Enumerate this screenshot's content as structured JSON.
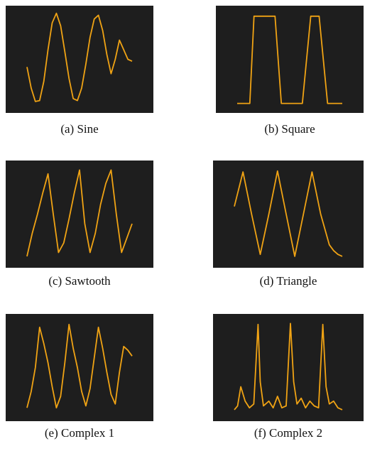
{
  "colors": {
    "screen": "#1e1e1e",
    "trace": "#f0a314",
    "page": "#ffffff"
  },
  "chart_data": [
    {
      "type": "line",
      "caption": "(a) Sine",
      "x": [
        0,
        0.04,
        0.08,
        0.12,
        0.16,
        0.2,
        0.24,
        0.28,
        0.32,
        0.36,
        0.4,
        0.44,
        0.48,
        0.52,
        0.56,
        0.6,
        0.64,
        0.68,
        0.72,
        0.76,
        0.8,
        0.84,
        0.88,
        0.92,
        0.96,
        1
      ],
      "y": [
        0.42,
        0.2,
        0.06,
        0.07,
        0.27,
        0.6,
        0.88,
        0.98,
        0.85,
        0.58,
        0.3,
        0.09,
        0.07,
        0.2,
        0.45,
        0.73,
        0.92,
        0.96,
        0.8,
        0.55,
        0.35,
        0.5,
        0.7,
        0.6,
        0.5,
        0.48
      ]
    },
    {
      "type": "line",
      "caption": "(b) Square",
      "x": [
        0,
        0.1,
        0.12,
        0.16,
        0.28,
        0.36,
        0.42,
        0.5,
        0.6,
        0.62,
        0.7,
        0.78,
        0.86,
        0.92,
        1
      ],
      "y": [
        0.04,
        0.04,
        0.04,
        0.95,
        0.95,
        0.95,
        0.04,
        0.04,
        0.04,
        0.04,
        0.95,
        0.95,
        0.04,
        0.04,
        0.04
      ]
    },
    {
      "type": "line",
      "caption": "(c) Sawtooth",
      "x": [
        0,
        0.05,
        0.1,
        0.15,
        0.2,
        0.25,
        0.3,
        0.35,
        0.4,
        0.45,
        0.5,
        0.55,
        0.6,
        0.65,
        0.7,
        0.75,
        0.8,
        0.85,
        0.9,
        0.95,
        1
      ],
      "y": [
        0.06,
        0.3,
        0.5,
        0.72,
        0.92,
        0.5,
        0.1,
        0.2,
        0.45,
        0.72,
        0.96,
        0.4,
        0.1,
        0.3,
        0.6,
        0.82,
        0.96,
        0.5,
        0.1,
        0.25,
        0.4
      ]
    },
    {
      "type": "line",
      "caption": "(d) Triangle",
      "x": [
        0,
        0.08,
        0.16,
        0.24,
        0.32,
        0.4,
        0.48,
        0.56,
        0.64,
        0.72,
        0.8,
        0.88,
        0.92,
        0.96,
        1
      ],
      "y": [
        0.58,
        0.94,
        0.5,
        0.08,
        0.5,
        0.95,
        0.5,
        0.06,
        0.5,
        0.94,
        0.5,
        0.18,
        0.12,
        0.08,
        0.06
      ]
    },
    {
      "type": "line",
      "caption": "(e) Complex 1",
      "x": [
        0,
        0.04,
        0.08,
        0.12,
        0.16,
        0.2,
        0.24,
        0.28,
        0.32,
        0.36,
        0.4,
        0.44,
        0.48,
        0.52,
        0.56,
        0.6,
        0.64,
        0.68,
        0.72,
        0.76,
        0.8,
        0.84,
        0.88,
        0.92,
        0.96,
        1
      ],
      "y": [
        0.08,
        0.25,
        0.5,
        0.92,
        0.75,
        0.55,
        0.3,
        0.08,
        0.2,
        0.55,
        0.95,
        0.7,
        0.5,
        0.25,
        0.1,
        0.28,
        0.6,
        0.92,
        0.7,
        0.45,
        0.22,
        0.12,
        0.45,
        0.72,
        0.68,
        0.62
      ]
    },
    {
      "type": "line",
      "caption": "(f) Complex 2",
      "x": [
        0,
        0.03,
        0.06,
        0.1,
        0.14,
        0.18,
        0.22,
        0.24,
        0.27,
        0.32,
        0.36,
        0.4,
        0.44,
        0.48,
        0.52,
        0.55,
        0.58,
        0.62,
        0.66,
        0.7,
        0.74,
        0.78,
        0.82,
        0.85,
        0.88,
        0.92,
        0.96,
        1
      ],
      "y": [
        0.06,
        0.1,
        0.3,
        0.15,
        0.08,
        0.12,
        0.95,
        0.35,
        0.1,
        0.15,
        0.08,
        0.2,
        0.08,
        0.1,
        0.96,
        0.35,
        0.12,
        0.18,
        0.08,
        0.15,
        0.1,
        0.08,
        0.95,
        0.3,
        0.12,
        0.15,
        0.08,
        0.06
      ]
    }
  ]
}
